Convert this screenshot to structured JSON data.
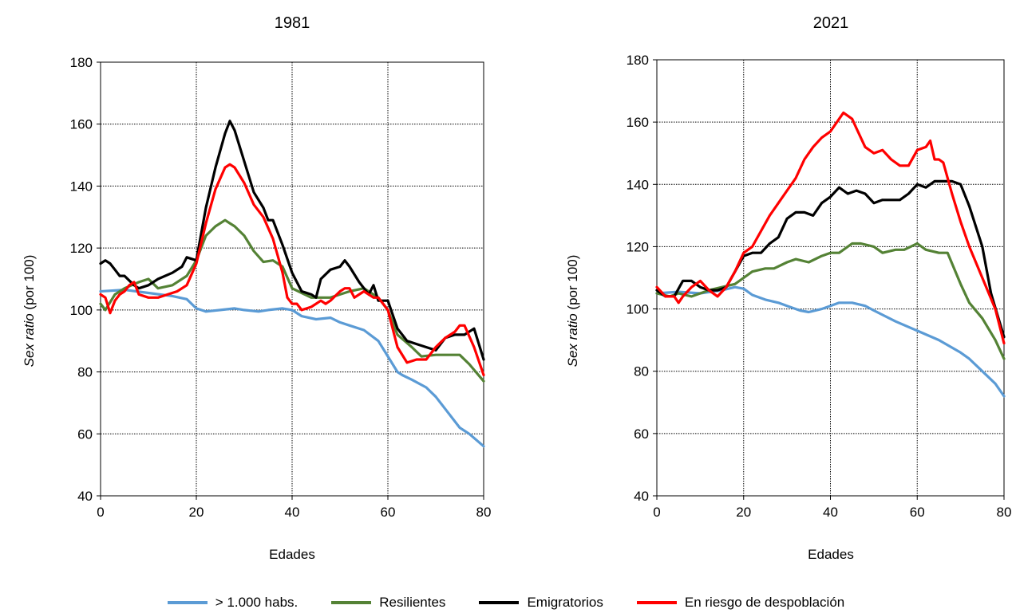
{
  "colors": {
    "habs": "#5b9bd5",
    "resilientes": "#548235",
    "emigratorios": "#000000",
    "riesgo": "#ff0000"
  },
  "legend": [
    {
      "key": "habs",
      "label": "> 1.000 habs."
    },
    {
      "key": "resilientes",
      "label": "Resilientes"
    },
    {
      "key": "emigratorios",
      "label": "Emigratorios"
    },
    {
      "key": "riesgo",
      "label": "En riesgo de despoblación"
    }
  ],
  "chart_data": [
    {
      "type": "line",
      "title": "1981",
      "xlabel": "Edades",
      "ylabel_italic": "Sex ratio",
      "ylabel_rest": " (por 100)",
      "xlim": [
        0,
        80
      ],
      "ylim": [
        40,
        180
      ],
      "xticks": [
        0,
        20,
        40,
        60,
        80
      ],
      "yticks": [
        40,
        60,
        80,
        100,
        120,
        140,
        160,
        180
      ],
      "grid": true,
      "series": [
        {
          "key": "habs",
          "name": "> 1.000 habs.",
          "x": [
            0,
            5,
            10,
            15,
            18,
            20,
            22,
            25,
            28,
            30,
            33,
            35,
            38,
            40,
            42,
            45,
            48,
            50,
            52,
            55,
            58,
            60,
            62,
            63,
            65,
            68,
            70,
            72,
            75,
            77,
            80
          ],
          "y": [
            106,
            106.5,
            105.5,
            104.5,
            103.5,
            100.5,
            99.5,
            100,
            100.5,
            100,
            99.5,
            100,
            100.5,
            100,
            98,
            97,
            97.5,
            96,
            95,
            93.5,
            90,
            85,
            80,
            79,
            77.5,
            75,
            72,
            68,
            62,
            60,
            56
          ]
        },
        {
          "key": "resilientes",
          "name": "Resilientes",
          "x": [
            0,
            1,
            3,
            5,
            8,
            10,
            12,
            15,
            18,
            20,
            22,
            24,
            26,
            27,
            28,
            30,
            32,
            34,
            36,
            38,
            40,
            42,
            44,
            46,
            48,
            50,
            52,
            55,
            58,
            60,
            62,
            65,
            67,
            70,
            72,
            75,
            77,
            80
          ],
          "y": [
            102,
            100,
            105,
            107,
            109,
            110,
            107,
            108,
            111,
            116,
            124,
            127,
            129,
            128,
            127,
            124,
            119,
            115.5,
            116,
            114,
            107,
            105.5,
            104,
            104,
            104,
            105,
            106,
            107,
            104,
            100,
            92,
            88,
            85,
            85.5,
            85.5,
            85.5,
            82.5,
            77
          ]
        },
        {
          "key": "emigratorios",
          "name": "Emigratorios",
          "x": [
            0,
            1,
            2,
            3,
            4,
            5,
            7,
            8,
            10,
            12,
            15,
            17,
            18,
            20,
            22,
            24,
            26,
            27,
            28,
            30,
            32,
            34,
            35,
            36,
            38,
            40,
            42,
            44,
            45,
            46,
            48,
            50,
            51,
            52,
            54,
            56,
            57,
            58,
            60,
            62,
            64,
            66,
            68,
            70,
            72,
            74,
            76,
            78,
            80
          ],
          "y": [
            115,
            116,
            115,
            113,
            111,
            111,
            108,
            107,
            108,
            110,
            112,
            114,
            117,
            116,
            133,
            146,
            157,
            161,
            158,
            148,
            138,
            133,
            129,
            129,
            121,
            112,
            106,
            105,
            104,
            110,
            113,
            114,
            116,
            114,
            109,
            105,
            108,
            103,
            103,
            94,
            90,
            89,
            88,
            87,
            91,
            92,
            92,
            94,
            84
          ]
        },
        {
          "key": "riesgo",
          "name": "En riesgo de despoblación",
          "x": [
            0,
            1,
            2,
            3,
            4,
            5,
            6,
            7,
            8,
            10,
            12,
            14,
            16,
            18,
            20,
            22,
            24,
            26,
            27,
            28,
            30,
            32,
            34,
            36,
            38,
            39,
            40,
            41,
            42,
            44,
            46,
            47,
            48,
            50,
            51,
            52,
            53,
            54,
            55,
            56,
            57,
            58,
            60,
            62,
            64,
            66,
            68,
            70,
            72,
            74,
            75,
            76,
            78,
            80
          ],
          "y": [
            105,
            104,
            99,
            103,
            105,
            106,
            108,
            109,
            105,
            104,
            104,
            105,
            106,
            108,
            115,
            128,
            139,
            146,
            147,
            146,
            141,
            134,
            130,
            123,
            112,
            104,
            102,
            102,
            100,
            101,
            103,
            102,
            103,
            106,
            107,
            107,
            104,
            105,
            106,
            105,
            104,
            104,
            100,
            88,
            83,
            84,
            84,
            88,
            91,
            93,
            95,
            95,
            88,
            79
          ]
        }
      ]
    },
    {
      "type": "line",
      "title": "2021",
      "xlabel": "Edades",
      "ylabel_italic": "Sex ratio",
      "ylabel_rest": " (por 100)",
      "xlim": [
        0,
        80
      ],
      "ylim": [
        40,
        180
      ],
      "xticks": [
        0,
        20,
        40,
        60,
        80
      ],
      "yticks": [
        40,
        60,
        80,
        100,
        120,
        140,
        160,
        180
      ],
      "grid": true,
      "series": [
        {
          "key": "habs",
          "name": "> 1.000 habs.",
          "x": [
            0,
            5,
            10,
            15,
            18,
            20,
            22,
            25,
            28,
            30,
            33,
            35,
            38,
            40,
            42,
            45,
            48,
            50,
            55,
            60,
            65,
            70,
            72,
            75,
            78,
            80
          ],
          "y": [
            105,
            105.5,
            105,
            106,
            107,
            106.5,
            104.5,
            103,
            102,
            101,
            99.5,
            99,
            100,
            101,
            102,
            102,
            101,
            99.5,
            96,
            93,
            90,
            86,
            84,
            80,
            76,
            72
          ]
        },
        {
          "key": "resilientes",
          "name": "Resilientes",
          "x": [
            0,
            3,
            5,
            8,
            10,
            12,
            15,
            18,
            20,
            22,
            25,
            27,
            30,
            32,
            35,
            38,
            40,
            42,
            45,
            47,
            50,
            52,
            55,
            57,
            60,
            62,
            65,
            67,
            70,
            72,
            75,
            78,
            80
          ],
          "y": [
            105,
            104,
            105,
            104,
            105,
            106,
            107,
            108,
            110,
            112,
            113,
            113,
            115,
            116,
            115,
            117,
            118,
            118,
            121,
            121,
            120,
            118,
            119,
            119,
            121,
            119,
            118,
            118,
            108,
            102,
            97,
            90,
            84
          ]
        },
        {
          "key": "emigratorios",
          "name": "Emigratorios",
          "x": [
            0,
            2,
            4,
            6,
            8,
            10,
            12,
            14,
            16,
            18,
            20,
            22,
            24,
            26,
            28,
            30,
            32,
            34,
            36,
            38,
            40,
            42,
            44,
            46,
            48,
            50,
            52,
            54,
            56,
            58,
            60,
            62,
            64,
            66,
            68,
            70,
            72,
            75,
            77,
            80
          ],
          "y": [
            106,
            104,
            104,
            109,
            109,
            107,
            106,
            106,
            107,
            112,
            117,
            118,
            118,
            121,
            123,
            129,
            131,
            131,
            130,
            134,
            136,
            139,
            137,
            138,
            137,
            134,
            135,
            135,
            135,
            137,
            140,
            139,
            141,
            141,
            141,
            140,
            133,
            120,
            105,
            91
          ]
        },
        {
          "key": "riesgo",
          "name": "En riesgo de despoblación",
          "x": [
            0,
            2,
            4,
            5,
            6,
            8,
            10,
            12,
            14,
            16,
            18,
            20,
            22,
            24,
            26,
            28,
            30,
            32,
            34,
            36,
            38,
            40,
            42,
            43,
            44,
            45,
            46,
            48,
            50,
            52,
            54,
            56,
            58,
            60,
            62,
            63,
            64,
            65,
            66,
            68,
            70,
            72,
            75,
            78,
            80
          ],
          "y": [
            107,
            104,
            104,
            102,
            104,
            107,
            109,
            106,
            104,
            107,
            112,
            118,
            120,
            125,
            130,
            134,
            138,
            142,
            148,
            152,
            155,
            157,
            161,
            163,
            162,
            161,
            158,
            152,
            150,
            151,
            148,
            146,
            146,
            151,
            152,
            154,
            148,
            148,
            147,
            137,
            128,
            120,
            110,
            100,
            89
          ]
        }
      ]
    }
  ]
}
